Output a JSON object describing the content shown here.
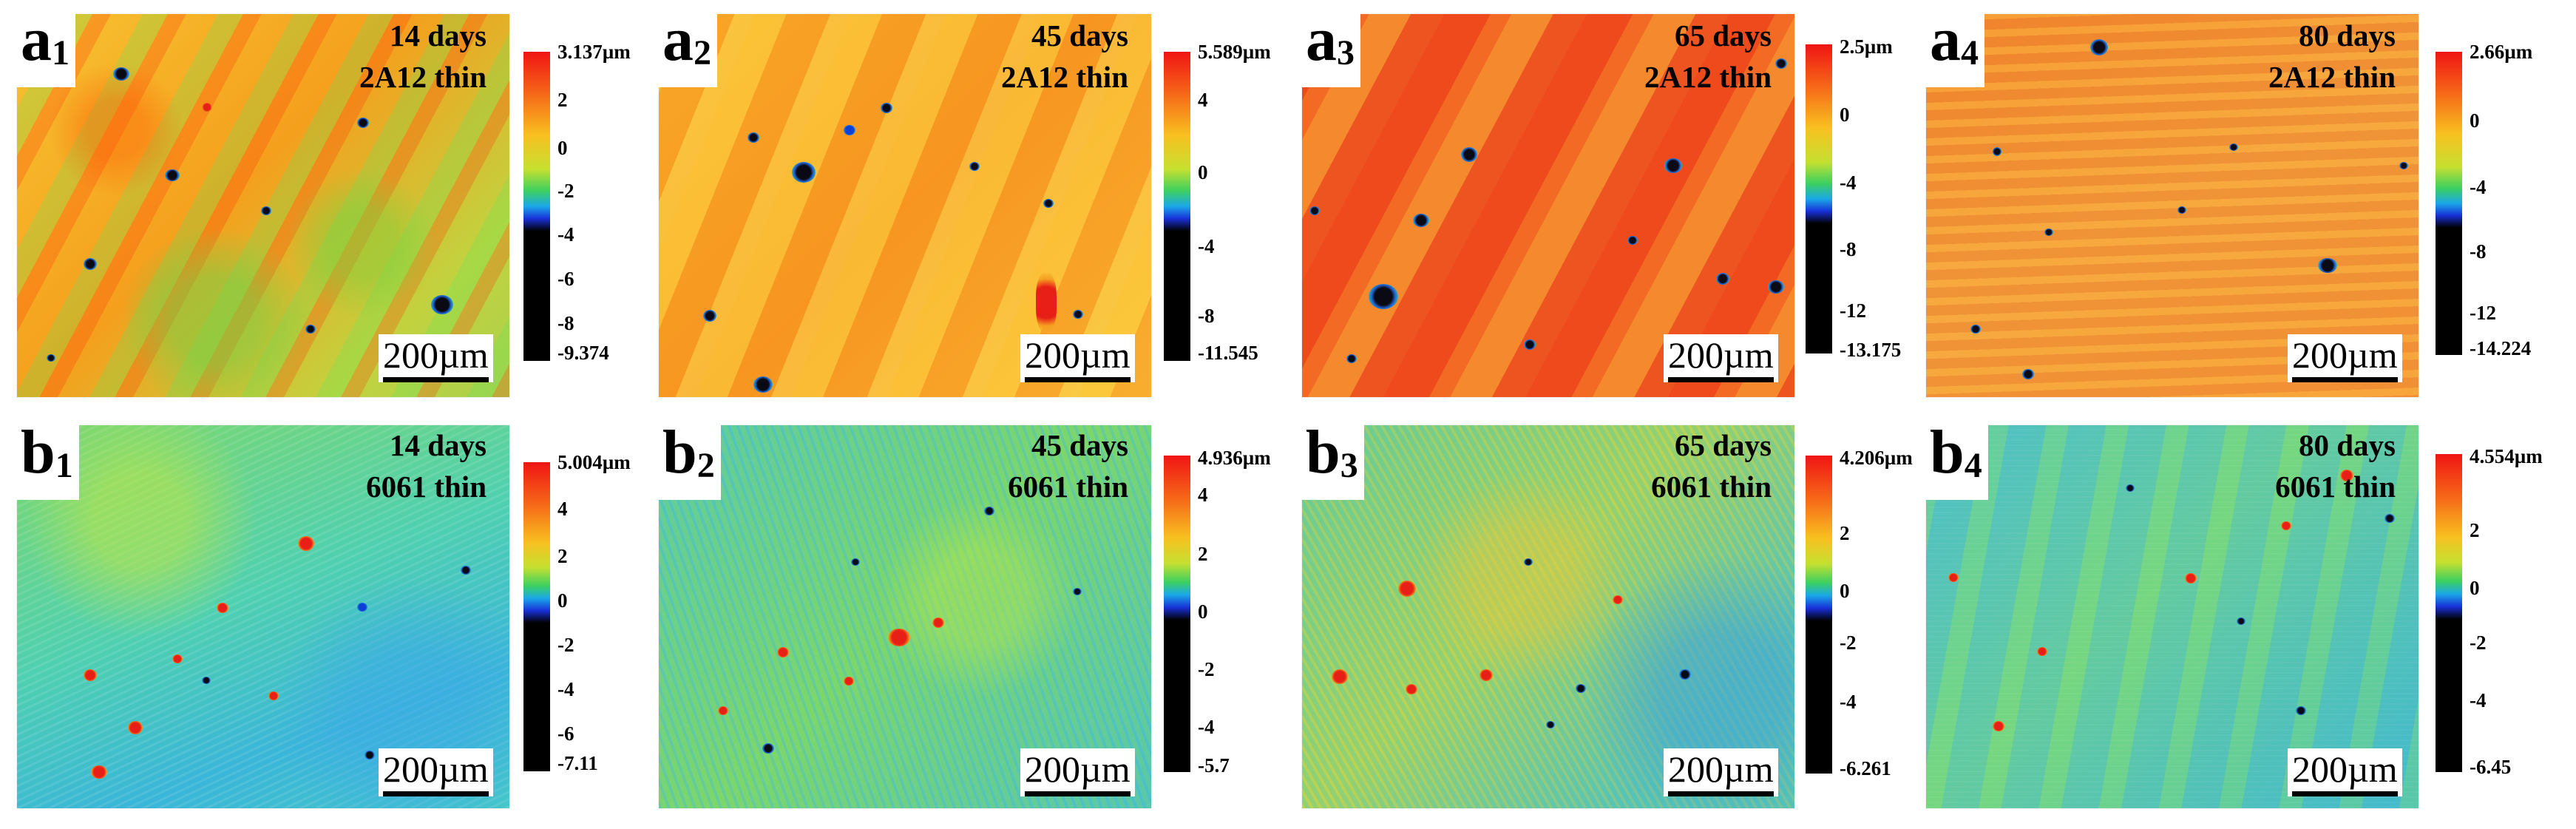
{
  "panels": [
    {
      "letter": "a",
      "sub": "1",
      "days": "14 days",
      "alloy": "2A12 thin",
      "scale": "200µm",
      "bar": {
        "max": "3.137µm",
        "t1": "2",
        "t2": "0",
        "t3": "-2",
        "t4": "-4",
        "t5": "-6",
        "t6": "-8",
        "min": "-9.374"
      }
    },
    {
      "letter": "a",
      "sub": "2",
      "days": "45 days",
      "alloy": "2A12 thin",
      "scale": "200µm",
      "bar": {
        "max": "5.589µm",
        "t1": "4",
        "t2": "0",
        "t3": "-4",
        "t4": "-8",
        "min": "-11.545"
      }
    },
    {
      "letter": "a",
      "sub": "3",
      "days": "65 days",
      "alloy": "2A12 thin",
      "scale": "200µm",
      "bar": {
        "max": "2.5µm",
        "t1": "0",
        "t2": "-4",
        "t3": "-8",
        "t4": "-12",
        "min": "-13.175"
      }
    },
    {
      "letter": "a",
      "sub": "4",
      "days": "80 days",
      "alloy": "2A12 thin",
      "scale": "200µm",
      "bar": {
        "max": "2.66µm",
        "t1": "0",
        "t2": "-4",
        "t3": "-8",
        "t4": "-12",
        "min": "-14.224"
      }
    },
    {
      "letter": "b",
      "sub": "1",
      "days": "14 days",
      "alloy": "6061 thin",
      "scale": "200µm",
      "bar": {
        "max": "5.004µm",
        "t1": "4",
        "t2": "2",
        "t3": "0",
        "t4": "-2",
        "t5": "-4",
        "t6": "-6",
        "min": "-7.11"
      }
    },
    {
      "letter": "b",
      "sub": "2",
      "days": "45 days",
      "alloy": "6061 thin",
      "scale": "200µm",
      "bar": {
        "max": "4.936µm",
        "t1": "4",
        "t2": "2",
        "t3": "0",
        "t4": "-2",
        "t5": "-4",
        "min": "-5.7"
      }
    },
    {
      "letter": "b",
      "sub": "3",
      "days": "65 days",
      "alloy": "6061 thin",
      "scale": "200µm",
      "bar": {
        "max": "4.206µm",
        "t1": "2",
        "t2": "0",
        "t3": "-2",
        "t4": "-4",
        "min": "-6.261"
      }
    },
    {
      "letter": "b",
      "sub": "4",
      "days": "80 days",
      "alloy": "6061 thin",
      "scale": "200µm",
      "bar": {
        "max": "4.554µm",
        "t1": "2",
        "t2": "0",
        "t3": "-2",
        "t4": "-4",
        "min": "-6.45"
      }
    }
  ],
  "colors": {
    "high": "#f01414",
    "mid": "#3cd060",
    "low": "#000000"
  }
}
